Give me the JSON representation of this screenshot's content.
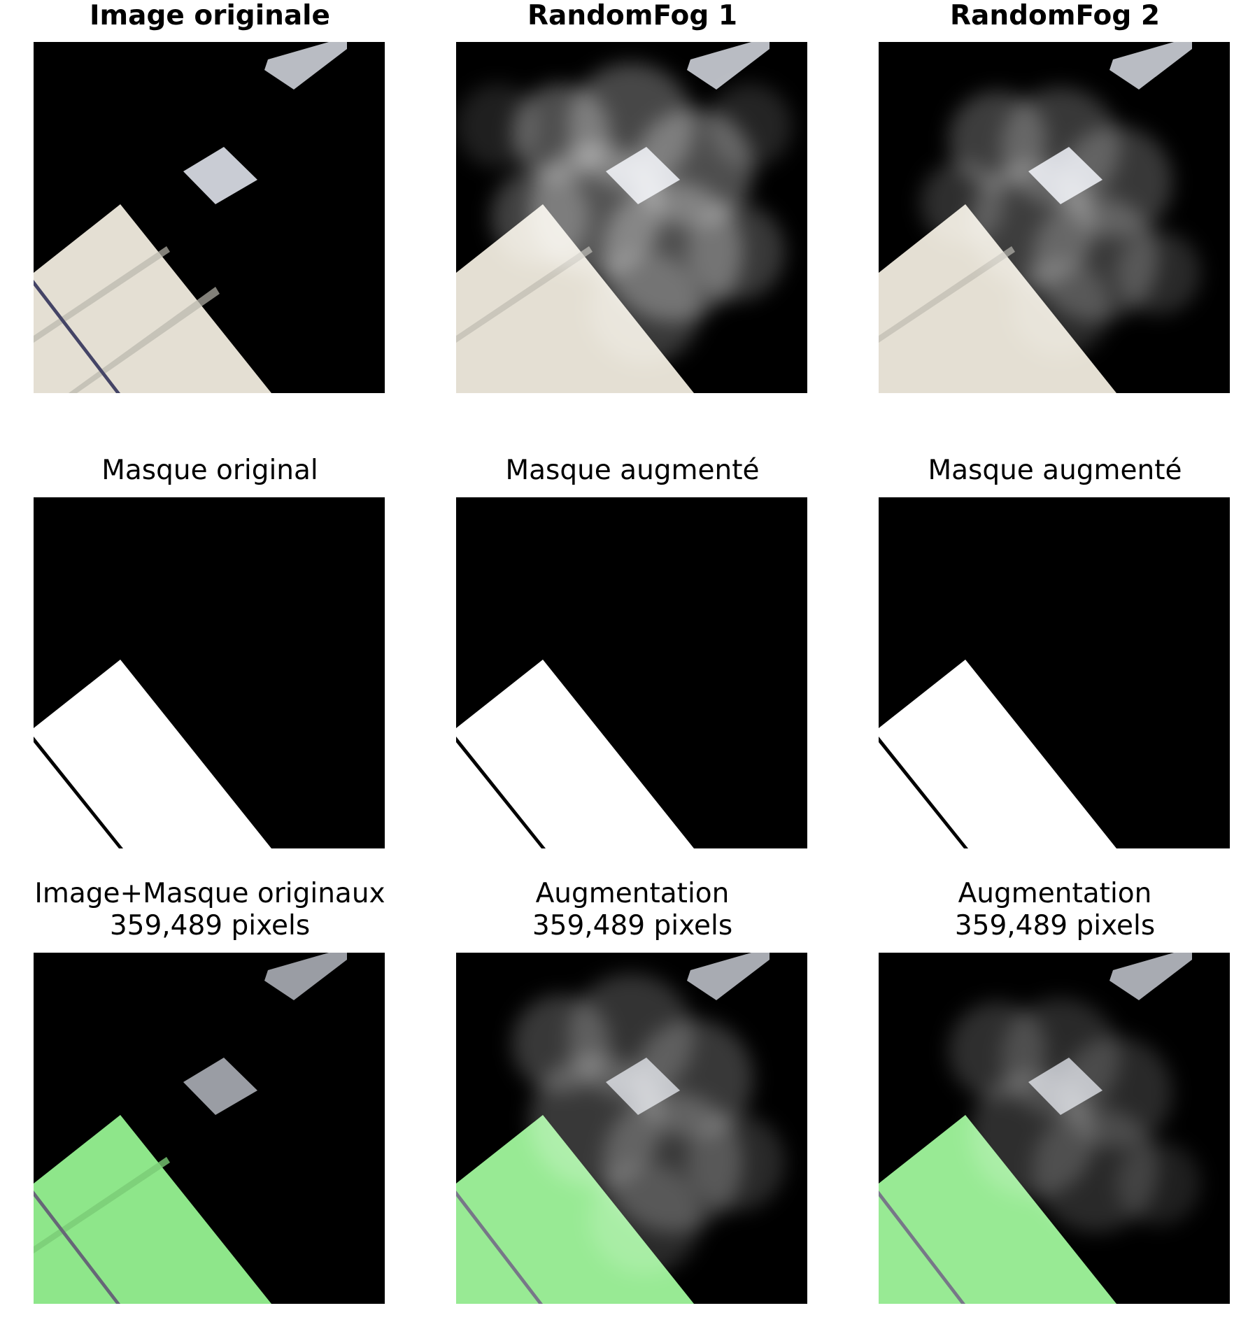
{
  "figure": {
    "rows": [
      {
        "row": "images",
        "panels": [
          {
            "title": "Image originale",
            "style": "bold",
            "kind": "image",
            "fog": "none",
            "overlay": false
          },
          {
            "title": "RandomFog 1",
            "style": "bold",
            "kind": "image",
            "fog": "fog1",
            "overlay": false
          },
          {
            "title": "RandomFog 2",
            "style": "bold",
            "kind": "image",
            "fog": "fog2",
            "overlay": false
          }
        ]
      },
      {
        "row": "masks",
        "panels": [
          {
            "title": "Masque original",
            "style": "normal",
            "kind": "mask"
          },
          {
            "title": "Masque augmenté",
            "style": "normal",
            "kind": "mask"
          },
          {
            "title": "Masque augmenté",
            "style": "normal",
            "kind": "mask"
          }
        ]
      },
      {
        "row": "overlays",
        "panels": [
          {
            "title": "Image+Masque originaux\n359,489 pixels",
            "style": "normal",
            "kind": "overlay",
            "fog": "none"
          },
          {
            "title": "Augmentation\n359,489 pixels",
            "style": "normal",
            "kind": "overlay",
            "fog": "fog1"
          },
          {
            "title": "Augmentation\n359,489 pixels",
            "style": "normal",
            "kind": "overlay",
            "fog": "fog2"
          }
        ]
      }
    ],
    "colors": {
      "roof": "#e4dfd3",
      "roof_stripe": "#b9b6ac",
      "mask_overlay": "#8ee68a",
      "fog": "#ffffff",
      "background": "#000000"
    }
  }
}
